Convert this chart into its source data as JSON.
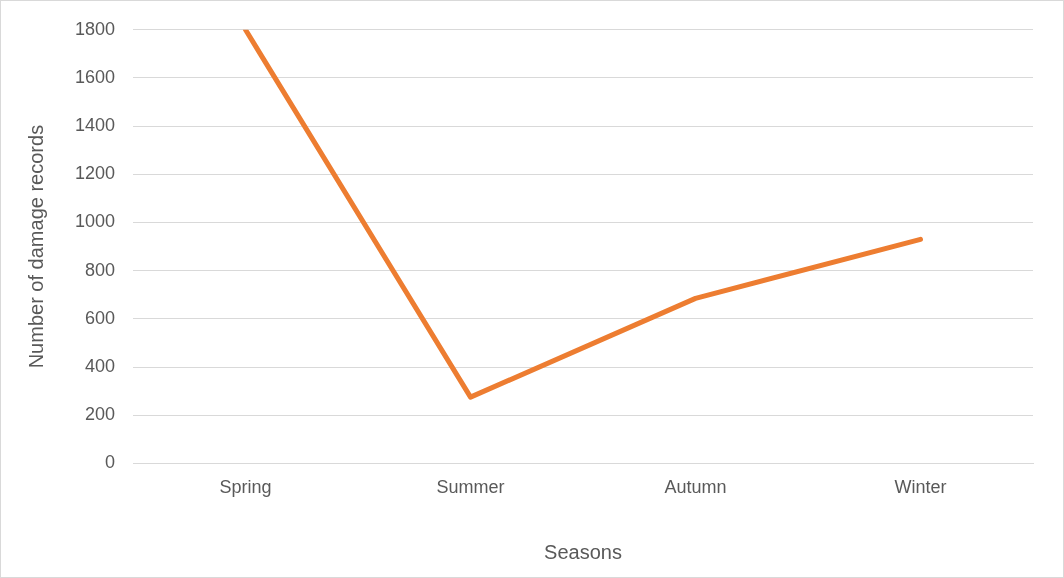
{
  "chart_data": {
    "type": "line",
    "xlabel": "Seasons",
    "ylabel": "Number of damage records",
    "categories": [
      "Spring",
      "Summer",
      "Autumn",
      "Winter"
    ],
    "series": [
      {
        "color": "#ed7d31",
        "values": [
          1800,
          275,
          685,
          930
        ]
      }
    ],
    "ylim": [
      0,
      1800
    ],
    "yticks": [
      0,
      200,
      400,
      600,
      800,
      1000,
      1200,
      1400,
      1600,
      1800
    ],
    "grid": "y",
    "legend": false,
    "marker": "none",
    "line_style": "solid"
  }
}
